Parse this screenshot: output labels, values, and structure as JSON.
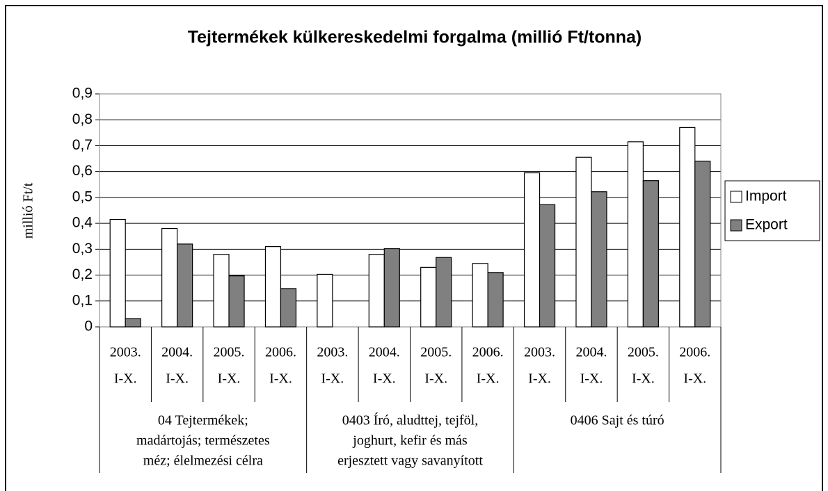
{
  "chart_data": {
    "type": "bar",
    "title": "Tejtermékek külkereskedelmi forgalma (millió Ft/tonna)",
    "y_label": "millió Ft/t",
    "groups": [
      {
        "label": [
          "04 Tejtermékek;",
          "madártojás; természetes",
          "méz; élelmezési célra"
        ],
        "categories": [
          [
            "2003.",
            "I-X."
          ],
          [
            "2004.",
            "I-X."
          ],
          [
            "2005.",
            "I-X."
          ],
          [
            "2006.",
            "I-X."
          ]
        ]
      },
      {
        "label": [
          "0403 Író, aludttej, tejföl,",
          "joghurt, kefir és más",
          "erjesztett vagy savanyított"
        ],
        "categories": [
          [
            "2003.",
            "I-X."
          ],
          [
            "2004.",
            "I-X."
          ],
          [
            "2005.",
            "I-X."
          ],
          [
            "2006.",
            "I-X."
          ]
        ]
      },
      {
        "label": [
          "0406 Sajt és túró"
        ],
        "categories": [
          [
            "2003.",
            "I-X."
          ],
          [
            "2004.",
            "I-X."
          ],
          [
            "2005.",
            "I-X."
          ],
          [
            "2006.",
            "I-X."
          ]
        ]
      }
    ],
    "series": [
      {
        "name": "Import",
        "color": "#ffffff",
        "values": [
          0.415,
          0.38,
          0.28,
          0.31,
          0.203,
          0.28,
          0.23,
          0.245,
          0.595,
          0.655,
          0.715,
          0.77
        ]
      },
      {
        "name": "Export",
        "color": "#808080",
        "values": [
          0.032,
          0.32,
          0.197,
          0.148,
          null,
          0.302,
          0.268,
          0.21,
          0.472,
          0.522,
          0.565,
          0.64
        ]
      }
    ],
    "ylim": [
      0,
      0.9
    ],
    "yticks": [
      0,
      {
        "value": 0.1,
        "label": "0,1"
      },
      {
        "value": 0.2,
        "label": "0,2"
      },
      {
        "value": 0.3,
        "label": "0,3"
      },
      {
        "value": 0.4,
        "label": "0,4"
      },
      {
        "value": 0.5,
        "label": "0,5"
      },
      {
        "value": 0.6,
        "label": "0,6"
      },
      {
        "value": 0.7,
        "label": "0,7"
      },
      {
        "value": 0.8,
        "label": "0,8"
      },
      {
        "value": 0.9,
        "label": "0,9"
      }
    ],
    "grid": true,
    "legend": "right"
  }
}
